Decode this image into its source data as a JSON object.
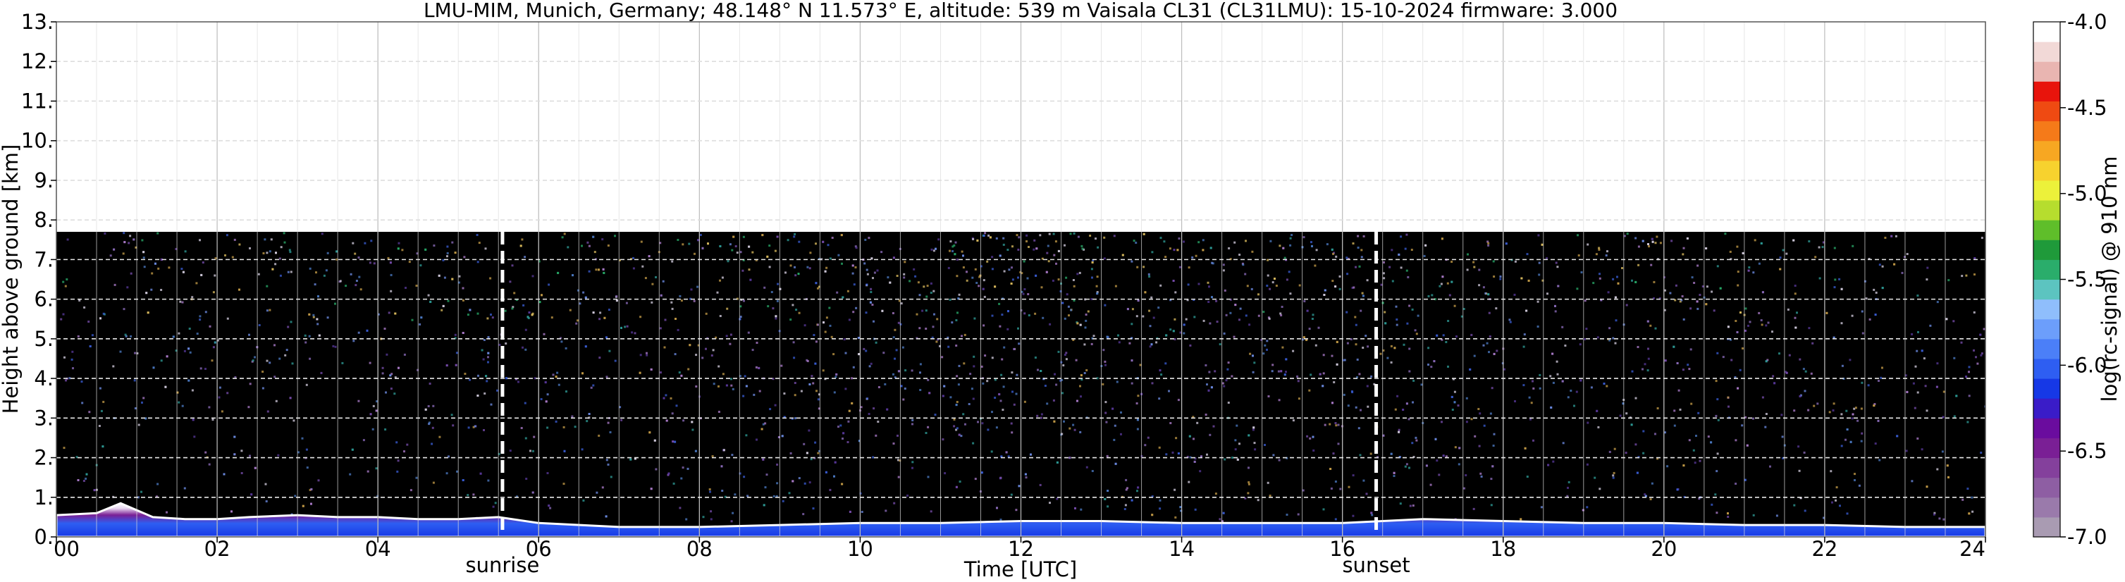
{
  "chart_data": {
    "type": "heatmap",
    "title": "LMU-MIM, Munich, Germany; 48.148° N 11.573° E, altitude: 539 m    Vaisala CL31 (CL31LMU): 15-10-2024    firmware: 3.000",
    "xlabel": "Time [UTC]",
    "ylabel": "Height above ground [km]",
    "xlim": [
      0,
      24
    ],
    "ylim": [
      0,
      13
    ],
    "x_ticks": [
      "00",
      "02",
      "04",
      "06",
      "08",
      "10",
      "12",
      "14",
      "16",
      "18",
      "20",
      "22",
      "24"
    ],
    "y_ticks": [
      "0.",
      "1.",
      "2.",
      "3.",
      "4.",
      "5.",
      "6.",
      "7.",
      "8.",
      "9.",
      "10.",
      "11.",
      "12.",
      "13."
    ],
    "grid": true,
    "colorbar": {
      "label": "log(rc-signal) @ 910 nm",
      "range": [
        -7.0,
        -4.0
      ],
      "ticks": [
        "-4.0",
        "-4.5",
        "-5.0",
        "-5.5",
        "-6.0",
        "-6.5",
        "-7.0"
      ],
      "colors": [
        "#a99bb2",
        "#9a7aab",
        "#8e5ea3",
        "#84409c",
        "#7a1f95",
        "#6a0c9e",
        "#3a1cc8",
        "#1638e6",
        "#2e5ef2",
        "#4b7ff8",
        "#6c9efb",
        "#8fbefc",
        "#5cc4c0",
        "#2aad6b",
        "#1f9a3a",
        "#5fbe2a",
        "#b6dd2e",
        "#ecf13a",
        "#f7d22e",
        "#f7a722",
        "#f57a19",
        "#ef4a12",
        "#e8140c",
        "#e9b5b1",
        "#f2d9d7",
        "#ffffff"
      ]
    },
    "data_extent_km": 7.7,
    "events": [
      {
        "label": "sunrise",
        "time_utc": 5.55
      },
      {
        "label": "sunset",
        "time_utc": 16.42
      }
    ],
    "boundary_layer_km": [
      [
        0.0,
        0.55
      ],
      [
        0.5,
        0.6
      ],
      [
        0.8,
        0.85
      ],
      [
        1.2,
        0.5
      ],
      [
        1.6,
        0.45
      ],
      [
        2.0,
        0.45
      ],
      [
        2.4,
        0.5
      ],
      [
        3.0,
        0.55
      ],
      [
        3.5,
        0.5
      ],
      [
        4.0,
        0.5
      ],
      [
        4.5,
        0.45
      ],
      [
        5.0,
        0.45
      ],
      [
        5.5,
        0.5
      ],
      [
        6.0,
        0.35
      ],
      [
        7.0,
        0.25
      ],
      [
        8.0,
        0.25
      ],
      [
        9.0,
        0.3
      ],
      [
        10.0,
        0.35
      ],
      [
        11.0,
        0.35
      ],
      [
        12.0,
        0.4
      ],
      [
        13.0,
        0.4
      ],
      [
        14.0,
        0.35
      ],
      [
        15.0,
        0.35
      ],
      [
        16.0,
        0.35
      ],
      [
        16.5,
        0.4
      ],
      [
        17.0,
        0.45
      ],
      [
        18.0,
        0.4
      ],
      [
        19.0,
        0.35
      ],
      [
        20.0,
        0.35
      ],
      [
        21.0,
        0.3
      ],
      [
        22.0,
        0.3
      ],
      [
        23.0,
        0.25
      ],
      [
        24.0,
        0.25
      ]
    ]
  }
}
